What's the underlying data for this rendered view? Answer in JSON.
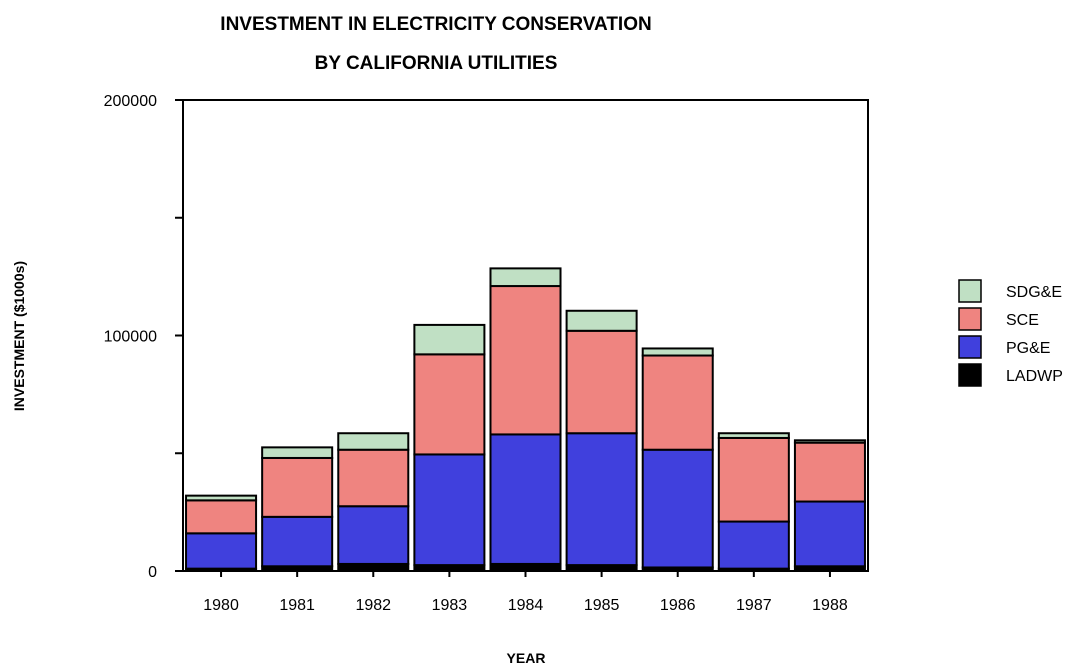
{
  "chart_data": {
    "type": "bar",
    "stacked": true,
    "title": [
      "INVESTMENT IN ELECTRICITY CONSERVATION",
      "BY CALIFORNIA UTILITIES"
    ],
    "xlabel": "YEAR",
    "ylabel": "INVESTMENT ($1000s)",
    "ylim": [
      0,
      200000
    ],
    "yticks": [
      0,
      100000,
      200000
    ],
    "y_tick_labels": [
      "0",
      "100000",
      "200000"
    ],
    "grid": false,
    "legend_position": "right",
    "categories": [
      "1980",
      "1981",
      "1982",
      "1983",
      "1984",
      "1985",
      "1986",
      "1987",
      "1988"
    ],
    "series": [
      {
        "name": "LADWP",
        "color": "#000000",
        "values": [
          1000,
          2000,
          3000,
          2500,
          3000,
          2500,
          1500,
          1000,
          2000
        ]
      },
      {
        "name": "PG&E",
        "color": "#4040dd",
        "values": [
          15000,
          21000,
          24500,
          47000,
          55000,
          56000,
          50000,
          20000,
          27500
        ]
      },
      {
        "name": "SCE",
        "color": "#ef8480",
        "values": [
          14000,
          25000,
          24000,
          42500,
          63000,
          43500,
          40000,
          35500,
          25000
        ]
      },
      {
        "name": "SDG&E",
        "color": "#c0e0c4",
        "values": [
          2000,
          4500,
          7000,
          12500,
          7500,
          8500,
          3000,
          2000,
          1000
        ]
      }
    ]
  }
}
